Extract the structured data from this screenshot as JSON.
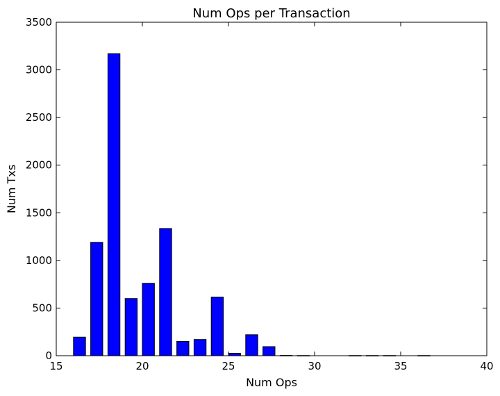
{
  "chart_data": {
    "type": "bar",
    "title": "Num Ops per Transaction",
    "xlabel": "Num Ops",
    "ylabel": "Num Txs",
    "xlim": [
      15,
      40
    ],
    "ylim": [
      0,
      3500
    ],
    "xticks": [
      15,
      20,
      25,
      30,
      35,
      40
    ],
    "yticks": [
      0,
      500,
      1000,
      1500,
      2000,
      2500,
      3000,
      3500
    ],
    "bar_width": 0.7,
    "bar_color": "#0000ff",
    "grid": false,
    "bars": [
      {
        "x": 16,
        "value": 195
      },
      {
        "x": 17,
        "value": 1190
      },
      {
        "x": 18,
        "value": 3170
      },
      {
        "x": 19,
        "value": 600
      },
      {
        "x": 20,
        "value": 760
      },
      {
        "x": 21,
        "value": 1335
      },
      {
        "x": 22,
        "value": 150
      },
      {
        "x": 23,
        "value": 170
      },
      {
        "x": 24,
        "value": 615
      },
      {
        "x": 25,
        "value": 25
      },
      {
        "x": 26,
        "value": 220
      },
      {
        "x": 27,
        "value": 95
      },
      {
        "x": 28,
        "value": 3
      },
      {
        "x": 29,
        "value": 2
      },
      {
        "x": 32,
        "value": 2
      },
      {
        "x": 33,
        "value": 2
      },
      {
        "x": 34,
        "value": 2
      },
      {
        "x": 36,
        "value": 2
      }
    ]
  }
}
